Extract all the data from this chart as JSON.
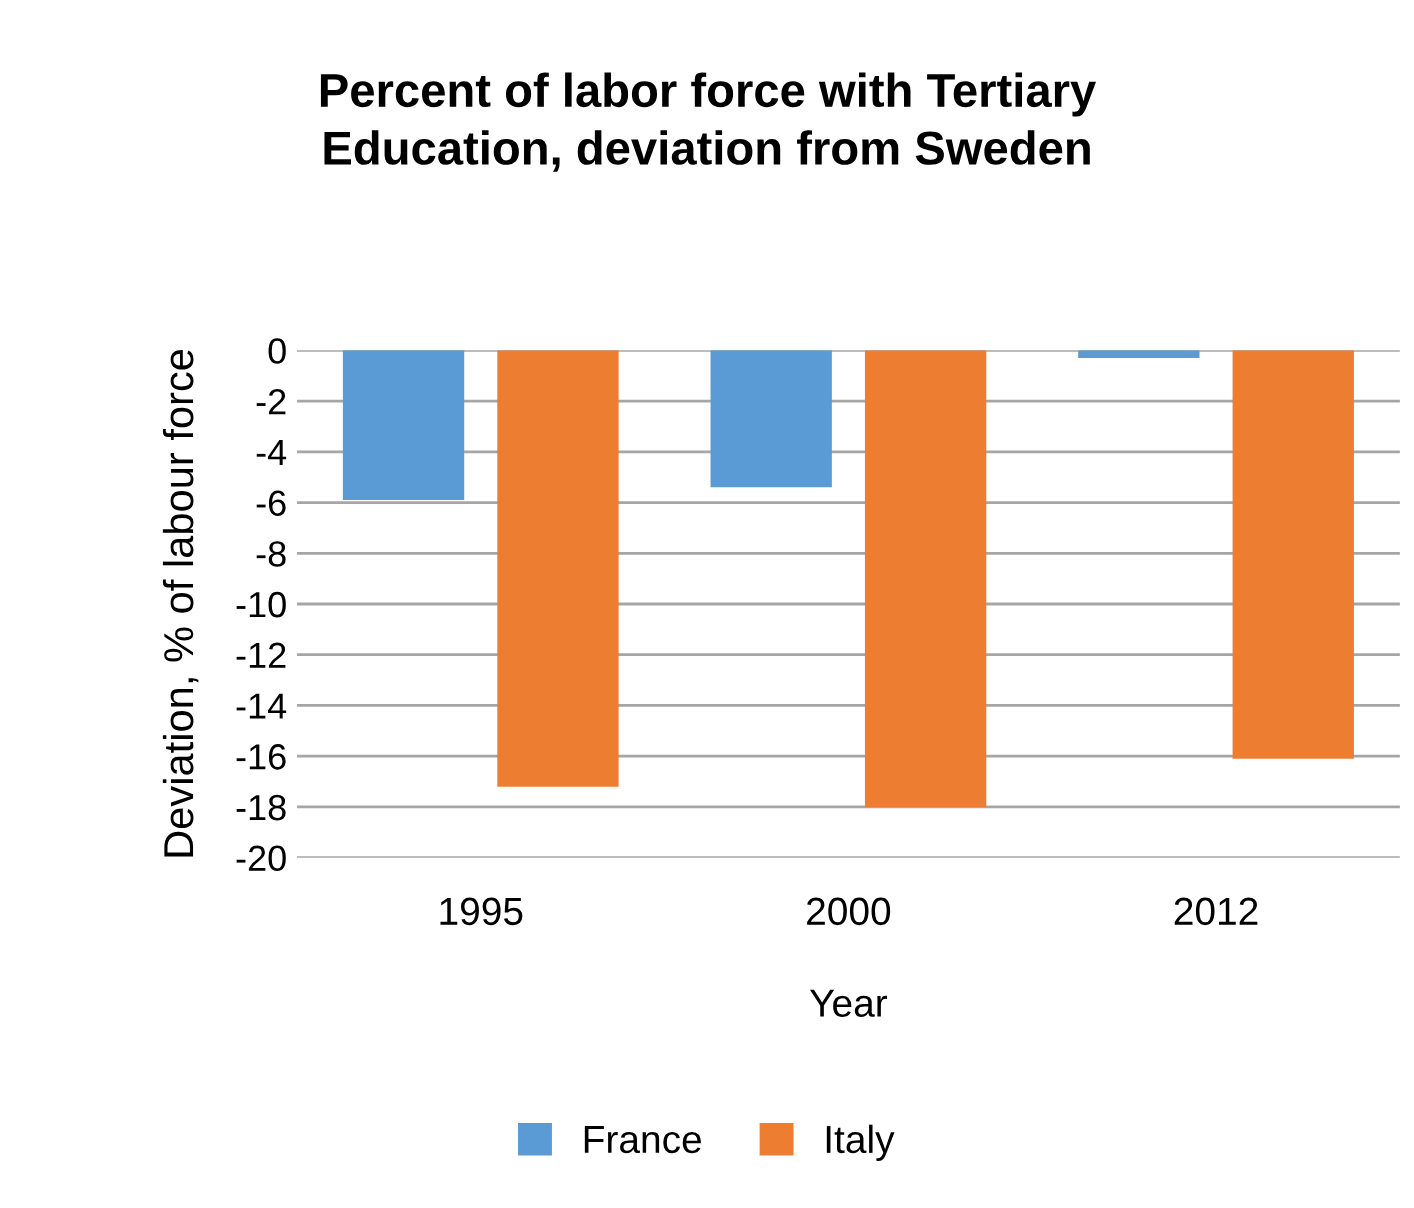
{
  "chart_data": {
    "type": "bar",
    "title": "Percent of labor force with Tertiary\nEducation, deviation from Sweden",
    "xlabel": "Year",
    "ylabel": "Deviation, % of labour force",
    "categories": [
      "1995",
      "2000",
      "2012"
    ],
    "series": [
      {
        "name": "France",
        "color": "#5b9bd5",
        "values": [
          -5.9,
          -5.4,
          -0.3
        ]
      },
      {
        "name": "Italy",
        "color": "#ed7d31",
        "values": [
          -17.2,
          -18.0,
          -16.1
        ]
      }
    ],
    "ylim": [
      -20,
      0
    ],
    "yticks": [
      0,
      -2,
      -4,
      -6,
      -8,
      -10,
      -12,
      -14,
      -16,
      -18,
      -20
    ],
    "grid": "y",
    "legend": "bottom"
  }
}
